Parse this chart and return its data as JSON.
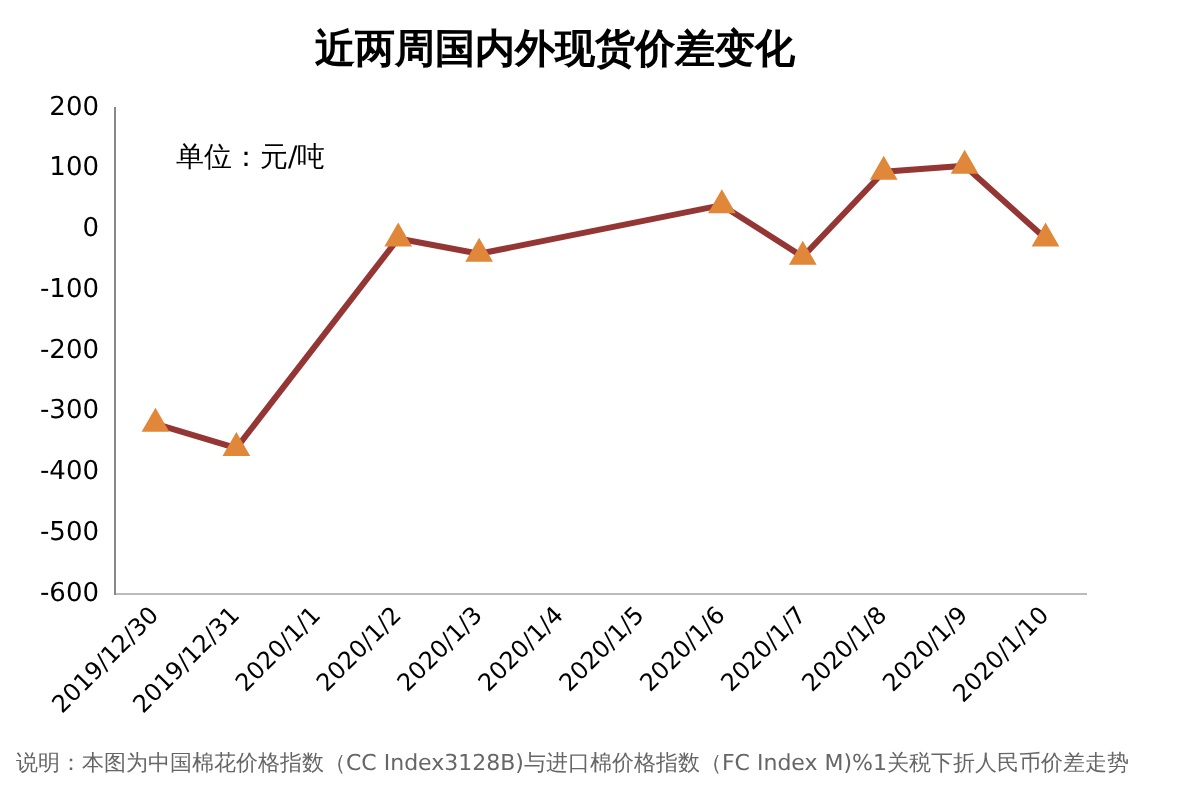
{
  "chart_data": {
    "type": "line",
    "title": "近两周国内外现货价差变化",
    "categories": [
      "2019/12/30",
      "2019/12/31",
      "2020/1/1",
      "2020/1/2",
      "2020/1/3",
      "2020/1/4",
      "2020/1/5",
      "2020/1/6",
      "2020/1/7",
      "2020/1/8",
      "2020/1/9",
      "2020/1/10"
    ],
    "series": [
      {
        "color": "#943634",
        "values": [
          -320,
          -360,
          null,
          -15,
          -40,
          null,
          null,
          40,
          -45,
          95,
          105,
          -15
        ]
      }
    ],
    "ylim": [
      -600,
      200
    ],
    "yticks": [
      -600,
      -500,
      -400,
      -300,
      -200,
      -100,
      0,
      100,
      200
    ],
    "grid": false,
    "legend": false,
    "marker": "triangle",
    "line_style": "solid",
    "annotations": [
      "单位：元/吨",
      "说明：本图为中国棉花价格指数（CC Index3128B)与进口棉价格指数（FC Index M)%1关税下折人民币价差走势"
    ]
  }
}
